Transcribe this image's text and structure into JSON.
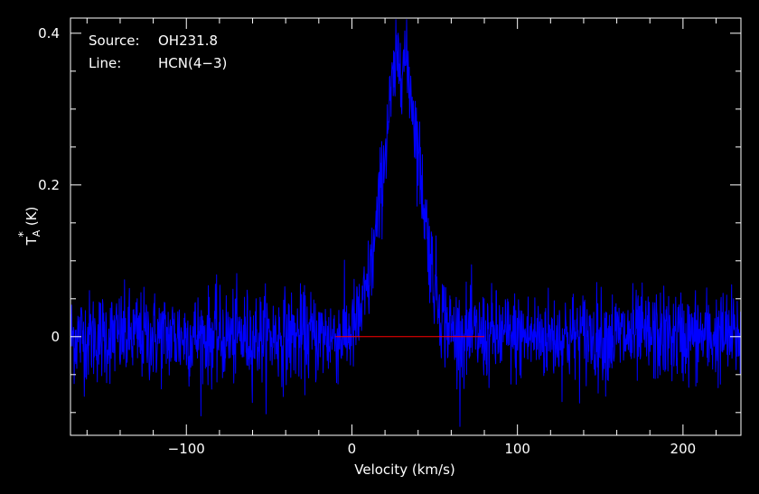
{
  "chart_data": {
    "type": "line",
    "annotations": {
      "source_label": "Source:",
      "source_value": "OH231.8",
      "line_label": "Line:",
      "line_value": "HCN(4−3)"
    },
    "xlabel": "Velocity (km/s)",
    "ylabel_main": "T",
    "ylabel_sup": "*",
    "ylabel_sub": "A",
    "ylabel_unit": "(K)",
    "xlim": [
      -170,
      235
    ],
    "ylim": [
      -0.13,
      0.42
    ],
    "x_ticks": [
      {
        "value": -100,
        "label": "−100"
      },
      {
        "value": 0,
        "label": "0"
      },
      {
        "value": 100,
        "label": "100"
      },
      {
        "value": 200,
        "label": "200"
      }
    ],
    "y_ticks": [
      {
        "value": 0,
        "label": "0"
      },
      {
        "value": 0.2,
        "label": "0.2"
      },
      {
        "value": 0.4,
        "label": "0.4"
      }
    ],
    "series": [
      {
        "color": "#0000ff",
        "profile": {
          "peak_velocity": 30,
          "peak_TA": 0.37,
          "width_sigma": 11,
          "noise_rms": 0.03
        },
        "values": [
          [
            -170,
            0.01
          ],
          [
            -160,
            -0.012
          ],
          [
            -150,
            0.018
          ],
          [
            -140,
            0.002
          ],
          [
            -130,
            -0.01
          ],
          [
            -120,
            0.012
          ],
          [
            -110,
            0.005
          ],
          [
            -100,
            -0.008
          ],
          [
            -90,
            0.01
          ],
          [
            -80,
            0.0
          ],
          [
            -70,
            0.008
          ],
          [
            -60,
            -0.015
          ],
          [
            -50,
            0.01
          ],
          [
            -40,
            0.003
          ],
          [
            -30,
            -0.006
          ],
          [
            -20,
            0.015
          ],
          [
            -10,
            0.008
          ],
          [
            0,
            0.012
          ],
          [
            5,
            0.03
          ],
          [
            10,
            0.045
          ],
          [
            15,
            0.08
          ],
          [
            20,
            0.18
          ],
          [
            25,
            0.32
          ],
          [
            28,
            0.4
          ],
          [
            30,
            0.37
          ],
          [
            33,
            0.33
          ],
          [
            36,
            0.26
          ],
          [
            40,
            0.18
          ],
          [
            45,
            0.11
          ],
          [
            50,
            0.06
          ],
          [
            55,
            0.035
          ],
          [
            60,
            0.02
          ],
          [
            70,
            0.01
          ],
          [
            80,
            0.002
          ],
          [
            90,
            0.005
          ],
          [
            100,
            -0.006
          ],
          [
            110,
            0.008
          ],
          [
            120,
            0.0
          ],
          [
            130,
            -0.01
          ],
          [
            140,
            0.006
          ],
          [
            150,
            0.004
          ],
          [
            160,
            -0.004
          ],
          [
            170,
            0.01
          ],
          [
            180,
            0.002
          ],
          [
            190,
            0.0
          ],
          [
            200,
            0.006
          ],
          [
            210,
            -0.002
          ],
          [
            220,
            0.004
          ],
          [
            230,
            -0.004
          ],
          [
            235,
            0.002
          ]
        ]
      }
    ],
    "baseline": {
      "color": "#ff0000",
      "xrange": [
        -10,
        80
      ],
      "y": 0
    },
    "grid": false,
    "frame_color": "#ffffff"
  }
}
